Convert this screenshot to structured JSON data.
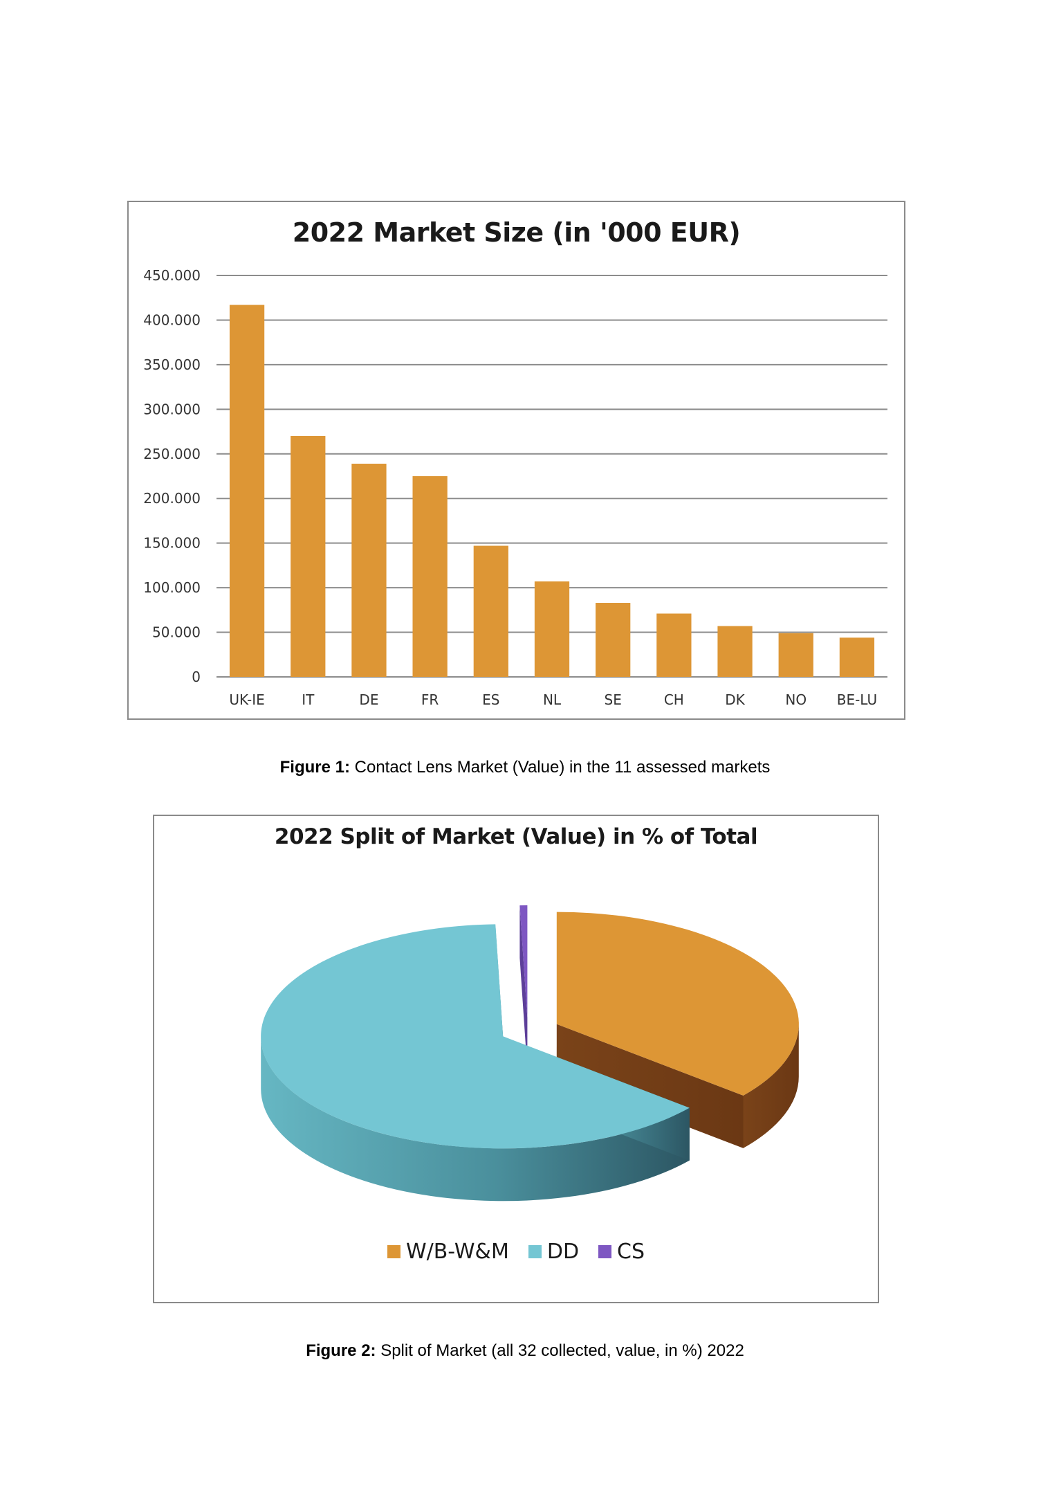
{
  "figure1": {
    "caption_label": "Figure 1:",
    "caption_text": " Contact Lens Market (Value) in the 11 assessed markets"
  },
  "figure2": {
    "caption_label": "Figure 2:",
    "caption_text": " Split of Market (all 32 collected, value, in %) 2022"
  },
  "chart_data": [
    {
      "type": "bar",
      "title": "2022 Market Size (in '000 EUR)",
      "categories": [
        "UK-IE",
        "IT",
        "DE",
        "FR",
        "ES",
        "NL",
        "SE",
        "CH",
        "DK",
        "NO",
        "BE-LU"
      ],
      "values": [
        417000,
        270000,
        239000,
        225000,
        147000,
        107000,
        83000,
        71000,
        57000,
        49000,
        44000
      ],
      "yticks": [
        "0",
        "50.000",
        "100.000",
        "150.000",
        "200.000",
        "250.000",
        "300.000",
        "350.000",
        "400.000",
        "450.000"
      ],
      "ylim": [
        0,
        450000
      ],
      "color": "#dd9635",
      "grid": true,
      "legend": "none"
    },
    {
      "type": "pie",
      "title": "2022 Split of Market (Value) in % of Total",
      "labels": [
        "W/B-W&M",
        "DD",
        "CS"
      ],
      "values": [
        36,
        63.5,
        0.5
      ],
      "colors": [
        "#dd9635",
        "#74c6d3",
        "#7e57c2"
      ],
      "exploded": true,
      "legend": "bottom"
    }
  ]
}
